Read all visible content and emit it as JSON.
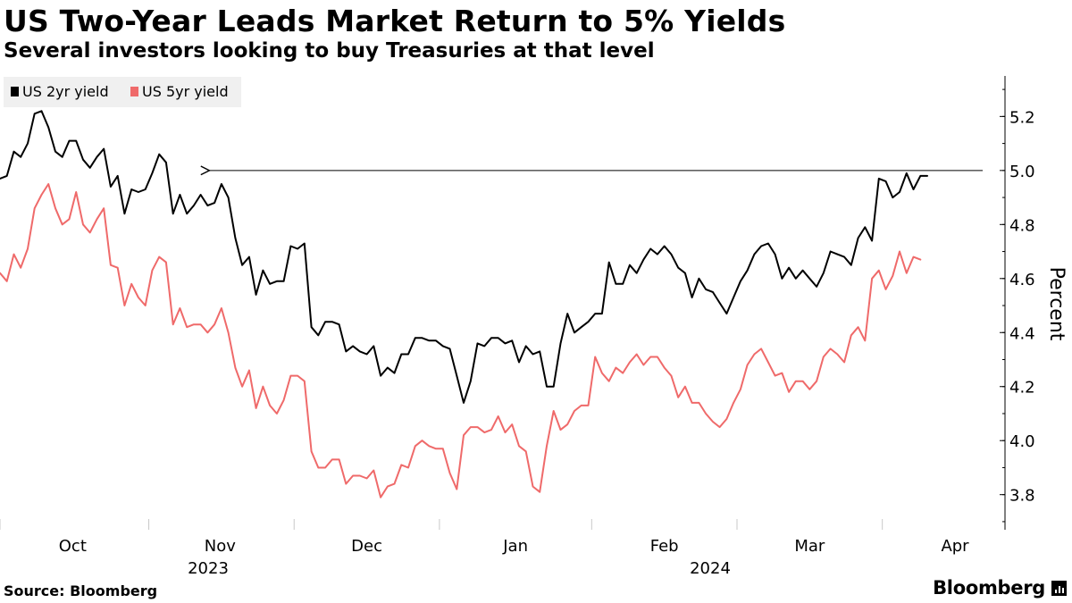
{
  "header": {
    "title": "US Two-Year Leads Market Return to 5% Yields",
    "subtitle": "Several investors looking to buy Treasuries at that level"
  },
  "footer": {
    "source": "Source: Bloomberg",
    "brand": "Bloomberg"
  },
  "colors": {
    "us2": "#000000",
    "us5": "#ef6a6a"
  },
  "chart_data": {
    "type": "line",
    "title": "US Two-Year Leads Market Return to 5% Yields",
    "subtitle": "Several investors looking to buy Treasuries at that level",
    "ylabel": "Percent",
    "ylim": [
      3.67,
      5.35
    ],
    "yticks": [
      "3.8",
      "4.0",
      "4.2",
      "4.4",
      "4.6",
      "4.8",
      "5.0",
      "5.2"
    ],
    "xlim_index": [
      0,
      142
    ],
    "months": [
      "Oct",
      "Nov",
      "Dec",
      "Jan",
      "Feb",
      "Mar",
      "Apr"
    ],
    "years": [
      "2023",
      "2024"
    ],
    "legend": [
      "US 2yr yield",
      "US 5yr yield"
    ],
    "legend_position": "top-left",
    "annotation": {
      "type": "arrow",
      "value": 5.0,
      "from_index": 30,
      "to_index": 148
    },
    "series": [
      {
        "name": "US 2yr yield",
        "values": [
          4.97,
          4.98,
          5.07,
          5.05,
          5.1,
          5.21,
          5.22,
          5.16,
          5.07,
          5.05,
          5.11,
          5.11,
          5.04,
          5.01,
          5.05,
          5.08,
          4.94,
          4.98,
          4.84,
          4.93,
          4.92,
          4.93,
          4.99,
          5.06,
          5.03,
          4.84,
          4.91,
          4.84,
          4.87,
          4.91,
          4.87,
          4.88,
          4.95,
          4.9,
          4.75,
          4.65,
          4.68,
          4.54,
          4.63,
          4.58,
          4.59,
          4.59,
          4.72,
          4.71,
          4.73,
          4.42,
          4.39,
          4.44,
          4.44,
          4.43,
          4.33,
          4.35,
          4.33,
          4.32,
          4.35,
          4.24,
          4.27,
          4.25,
          4.32,
          4.32,
          4.38,
          4.38,
          4.37,
          4.37,
          4.35,
          4.34,
          4.24,
          4.14,
          4.22,
          4.36,
          4.35,
          4.38,
          4.38,
          4.36,
          4.37,
          4.29,
          4.35,
          4.32,
          4.33,
          4.2,
          4.2,
          4.36,
          4.47,
          4.4,
          4.42,
          4.44,
          4.47,
          4.47,
          4.66,
          4.58,
          4.58,
          4.65,
          4.62,
          4.67,
          4.71,
          4.69,
          4.72,
          4.69,
          4.64,
          4.62,
          4.53,
          4.6,
          4.56,
          4.55,
          4.51,
          4.47,
          4.53,
          4.59,
          4.63,
          4.69,
          4.72,
          4.73,
          4.69,
          4.6,
          4.64,
          4.6,
          4.63,
          4.6,
          4.57,
          4.62,
          4.7,
          4.69,
          4.68,
          4.65,
          4.75,
          4.79,
          4.74,
          4.97,
          4.96,
          4.9,
          4.92,
          4.99,
          4.93,
          4.98,
          4.98
        ]
      },
      {
        "name": "US 5yr yield",
        "values": [
          4.62,
          4.59,
          4.69,
          4.64,
          4.71,
          4.86,
          4.91,
          4.95,
          4.86,
          4.8,
          4.82,
          4.92,
          4.8,
          4.77,
          4.82,
          4.86,
          4.65,
          4.64,
          4.5,
          4.58,
          4.53,
          4.5,
          4.63,
          4.68,
          4.66,
          4.43,
          4.49,
          4.42,
          4.43,
          4.43,
          4.4,
          4.43,
          4.49,
          4.4,
          4.27,
          4.2,
          4.26,
          4.12,
          4.2,
          4.13,
          4.1,
          4.15,
          4.24,
          4.24,
          4.22,
          3.96,
          3.9,
          3.9,
          3.93,
          3.93,
          3.84,
          3.87,
          3.87,
          3.86,
          3.89,
          3.79,
          3.83,
          3.84,
          3.91,
          3.9,
          3.98,
          4.0,
          3.98,
          3.97,
          3.97,
          3.88,
          3.82,
          4.02,
          4.05,
          4.05,
          4.03,
          4.04,
          4.09,
          4.03,
          4.06,
          3.98,
          3.96,
          3.83,
          3.81,
          3.98,
          4.11,
          4.04,
          4.06,
          4.11,
          4.13,
          4.13,
          4.31,
          4.25,
          4.22,
          4.27,
          4.25,
          4.29,
          4.32,
          4.28,
          4.31,
          4.31,
          4.27,
          4.24,
          4.16,
          4.2,
          4.14,
          4.14,
          4.1,
          4.07,
          4.05,
          4.08,
          4.14,
          4.19,
          4.28,
          4.32,
          4.34,
          4.29,
          4.24,
          4.25,
          4.18,
          4.22,
          4.22,
          4.19,
          4.22,
          4.31,
          4.34,
          4.32,
          4.29,
          4.39,
          4.42,
          4.37,
          4.6,
          4.63,
          4.56,
          4.61,
          4.7,
          4.62,
          4.68,
          4.67
        ]
      }
    ]
  }
}
